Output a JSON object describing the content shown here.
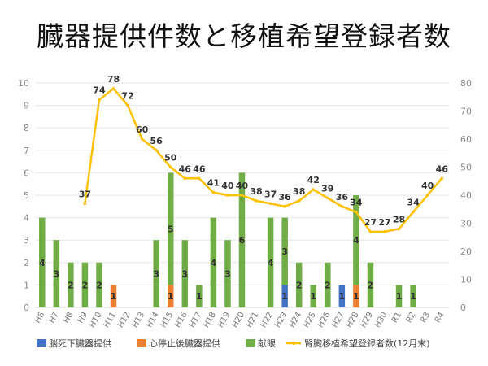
{
  "title": "臓器提供件数と移植希望登録者数",
  "colors": {
    "brain_dead": "#4472C4",
    "cardiac_death": "#ED7D31",
    "eye_bank": "#70AD47",
    "waitlist": "#FFC000",
    "grid": "#e6e6e6",
    "axis_text": "#8a8a8a"
  },
  "chart_data": {
    "type": "bar+line",
    "categories": [
      "H6",
      "H7",
      "H8",
      "H9",
      "H10",
      "H11",
      "H12",
      "H13",
      "H14",
      "H15",
      "H16",
      "H17",
      "H18",
      "H19",
      "H20",
      "H21",
      "H22",
      "H23",
      "H24",
      "H25",
      "H26",
      "H27",
      "H28",
      "H29",
      "H30",
      "R1",
      "R2",
      "R3",
      "R4"
    ],
    "left_axis": {
      "min": 0,
      "max": 10,
      "step": 1
    },
    "right_axis": {
      "min": 0,
      "max": 80,
      "step": 10
    },
    "grid": true,
    "legend_position": "bottom",
    "series": [
      {
        "name": "脳死下臓器提供",
        "kind": "bar",
        "axis": "left",
        "color_key": "brain_dead",
        "values": [
          0,
          0,
          0,
          0,
          0,
          0,
          0,
          0,
          0,
          0,
          0,
          0,
          0,
          0,
          0,
          0,
          0,
          1,
          0,
          0,
          0,
          1,
          0,
          0,
          0,
          0,
          0,
          0,
          0
        ]
      },
      {
        "name": "心停止後臓器提供",
        "kind": "bar",
        "axis": "left",
        "color_key": "cardiac_death",
        "values": [
          0,
          0,
          0,
          0,
          0,
          1,
          0,
          0,
          0,
          1,
          0,
          0,
          0,
          0,
          0,
          0,
          0,
          0,
          0,
          0,
          0,
          0,
          1,
          0,
          0,
          0,
          0,
          0,
          0
        ]
      },
      {
        "name": "献眼",
        "kind": "bar",
        "axis": "left",
        "color_key": "eye_bank",
        "values": [
          4,
          3,
          2,
          2,
          2,
          0,
          0,
          0,
          3,
          5,
          3,
          1,
          4,
          3,
          6,
          0,
          4,
          3,
          2,
          1,
          2,
          0,
          4,
          2,
          0,
          1,
          1,
          0,
          0
        ]
      },
      {
        "name": "腎臓移植希望登録者数(12月末)",
        "kind": "line",
        "axis": "right",
        "color_key": "waitlist",
        "values": [
          null,
          null,
          null,
          37,
          74,
          78,
          72,
          60,
          56,
          50,
          46,
          46,
          41,
          40,
          40,
          38,
          37,
          36,
          38,
          42,
          39,
          36,
          34,
          27,
          27,
          28,
          34,
          40,
          46
        ]
      }
    ]
  }
}
